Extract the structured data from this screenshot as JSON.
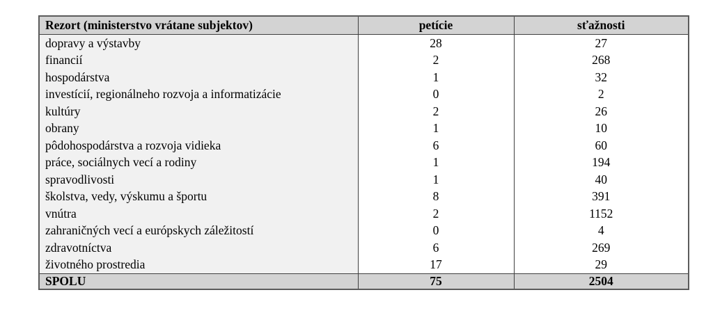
{
  "colors": {
    "header_bg": "#d3d3d3",
    "body_col1_bg": "#f1f1f1",
    "border_outer": "#5b5b5b",
    "border_inner": "#3f3f3f"
  },
  "table": {
    "columns": [
      "Rezort (ministerstvo vrátane subjektov)",
      "petície",
      "sťažnosti"
    ],
    "rows": [
      {
        "rezort": "dopravy a výstavby",
        "peticie": 28,
        "staznosti": 27
      },
      {
        "rezort": "financií",
        "peticie": 2,
        "staznosti": 268
      },
      {
        "rezort": "hospodárstva",
        "peticie": 1,
        "staznosti": 32
      },
      {
        "rezort": "investícií, regionálneho rozvoja a informatizácie",
        "peticie": 0,
        "staznosti": 2
      },
      {
        "rezort": "kultúry",
        "peticie": 2,
        "staznosti": 26
      },
      {
        "rezort": "obrany",
        "peticie": 1,
        "staznosti": 10
      },
      {
        "rezort": "pôdohospodárstva a rozvoja vidieka",
        "peticie": 6,
        "staznosti": 60
      },
      {
        "rezort": "práce, sociálnych vecí a rodiny",
        "peticie": 1,
        "staznosti": 194
      },
      {
        "rezort": "spravodlivosti",
        "peticie": 1,
        "staznosti": 40
      },
      {
        "rezort": "školstva, vedy, výskumu a športu",
        "peticie": 8,
        "staznosti": 391
      },
      {
        "rezort": "vnútra",
        "peticie": 2,
        "staznosti": 1152
      },
      {
        "rezort": "zahraničných vecí a európskych záležitostí",
        "peticie": 0,
        "staznosti": 4
      },
      {
        "rezort": "zdravotníctva",
        "peticie": 6,
        "staznosti": 269
      },
      {
        "rezort": "životného prostredia",
        "peticie": 17,
        "staznosti": 29
      }
    ],
    "total": {
      "label": "SPOLU",
      "peticie": 75,
      "staznosti": 2504
    }
  }
}
